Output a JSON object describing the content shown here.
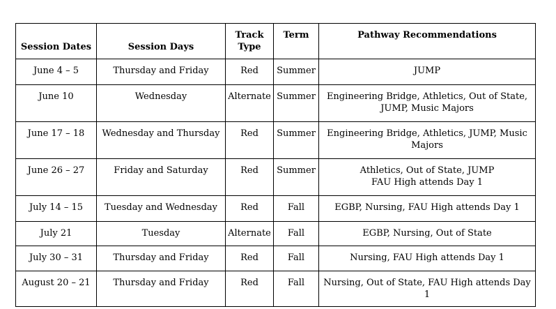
{
  "colors": {
    "background": "#ffffff",
    "border": "#000000",
    "text": "#000000"
  },
  "table": {
    "headers": [
      "Session Dates",
      "Session Days",
      "Track\nType",
      "Term",
      "Pathway Recommendations"
    ],
    "rows": [
      {
        "dates": "June 4 – 5",
        "days": "Thursday and Friday",
        "track": "Red",
        "term": "Summer",
        "pathways": "JUMP"
      },
      {
        "dates": "June 10",
        "days": "Wednesday",
        "track": "Alternate",
        "term": "Summer",
        "pathways": "Engineering Bridge, Athletics, Out of State,\nJUMP, Music Majors"
      },
      {
        "dates": "June 17 – 18",
        "days": "Wednesday and Thursday",
        "track": "Red",
        "term": "Summer",
        "pathways": "Engineering Bridge, Athletics, JUMP, Music\nMajors"
      },
      {
        "dates": "June 26 – 27",
        "days": "Friday and Saturday",
        "track": "Red",
        "term": "Summer",
        "pathways": "Athletics, Out of State, JUMP\nFAU High attends Day 1"
      },
      {
        "dates": "July 14 – 15",
        "days": "Tuesday and Wednesday",
        "track": "Red",
        "term": "Fall",
        "pathways": "EGBP, Nursing, FAU High attends Day 1"
      },
      {
        "dates": "July 21",
        "days": "Tuesday",
        "track": "Alternate",
        "term": "Fall",
        "pathways": "EGBP, Nursing, Out of State"
      },
      {
        "dates": "July 30 – 31",
        "days": "Thursday and Friday",
        "track": "Red",
        "term": "Fall",
        "pathways": "Nursing, FAU High attends Day 1"
      },
      {
        "dates": "August 20 – 21",
        "days": "Thursday and Friday",
        "track": "Red",
        "term": "Fall",
        "pathways": "Nursing, Out of State, FAU High attends Day 1"
      }
    ]
  }
}
